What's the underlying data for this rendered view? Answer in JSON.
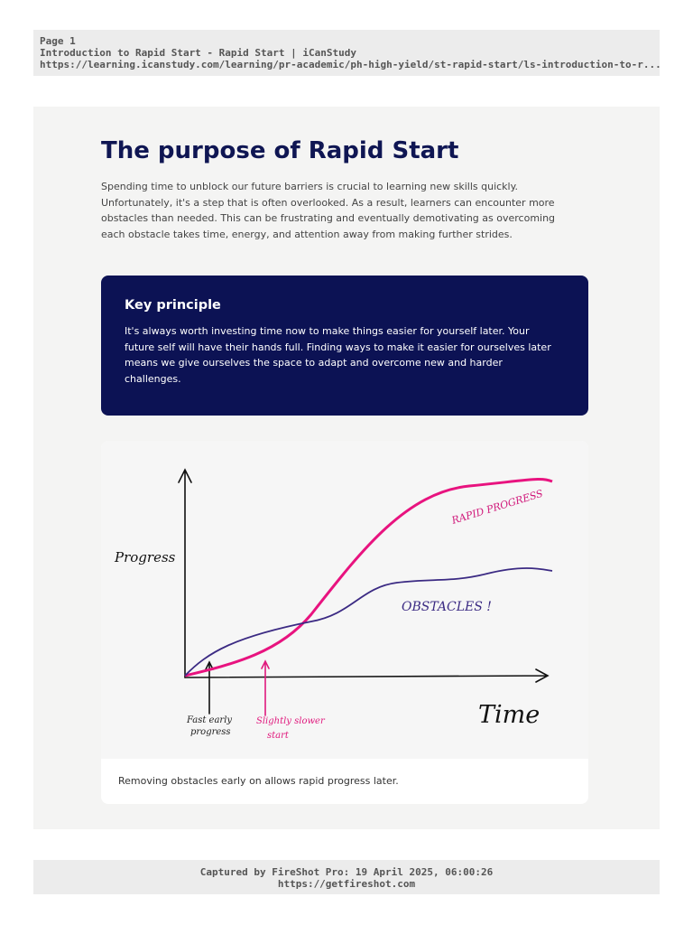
{
  "header": {
    "page": "Page 1",
    "title": "Introduction to Rapid Start - Rapid Start | iCanStudy",
    "url": "https://learning.icanstudy.com/learning/pr-academic/ph-high-yield/st-rapid-start/ls-introduction-to-r..."
  },
  "content": {
    "heading": "The purpose of Rapid Start",
    "paragraph": [
      "Spending time to unblock our future barriers is crucial to learning new skills quickly.",
      "Unfortunately, it's a step that is often overlooked. As a result, learners can encounter more",
      "obstacles than needed. This can be frustrating and eventually demotivating as overcoming",
      "each obstacle takes time, energy, and attention away from making further strides."
    ],
    "principle": {
      "title": "Key principle",
      "lines": [
        "It's always worth investing time now to make things easier for yourself later. Your",
        "future self will have their hands full. Finding ways to make it easier for ourselves later",
        "means we give ourselves the space to adapt and overcome new and harder",
        "challenges."
      ]
    },
    "figure": {
      "y_label": "Progress",
      "x_label": "Time",
      "rapid": "RAPID PROGRESS",
      "obstacles": "OBSTACLES !",
      "fast": [
        "Fast early",
        "progress"
      ],
      "slow": [
        "Slightly slower",
        "start"
      ],
      "caption": "Removing obstacles early on allows rapid progress later."
    }
  },
  "footer": {
    "captured": "Captured by FireShot Pro: 19 April 2025, 06:00:26",
    "link": "https://getfireshot.com"
  }
}
